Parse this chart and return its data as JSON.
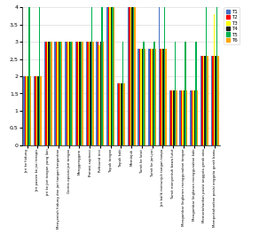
{
  "categories": [
    "Jari ke hidung",
    "Jari pasien ke jari terapis",
    "jari ke jari tangan yang lain",
    "Menyentuh hidung dan jari tangan bergantian",
    "Germs oposisi jari tangan",
    "Menggenggam",
    "Pronasi-supinasi",
    "Rebound test",
    "Tepuk tangan",
    "Tepuk kaki",
    "Meminjuk",
    "Tumit ke lutut",
    "Tumit ke jari-jari",
    "Jari balik menunjuk tangan tanpa",
    "Tumit menyentuh bawa lutut",
    "Mengambar lingkaran menggunakan tangan",
    "Mengambar lingkaran menggunakan kaki",
    "Memertahankan posisi anggota gerak atas",
    "Mempertahankan posisi anggota gerak bawu"
  ],
  "series": {
    "T1": [
      2.0,
      2.0,
      3.0,
      3.0,
      3.0,
      3.0,
      3.0,
      3.0,
      4.0,
      1.8,
      4.0,
      2.8,
      2.8,
      4.0,
      1.6,
      1.6,
      1.6,
      2.6,
      2.6
    ],
    "T2": [
      2.0,
      2.0,
      3.0,
      3.0,
      3.0,
      3.0,
      3.0,
      3.0,
      4.0,
      1.8,
      4.0,
      2.8,
      2.8,
      2.8,
      1.6,
      1.6,
      1.6,
      2.6,
      2.6
    ],
    "T3": [
      2.0,
      2.0,
      3.0,
      3.0,
      3.0,
      3.0,
      3.0,
      2.9,
      4.0,
      1.8,
      4.0,
      2.8,
      2.8,
      2.8,
      1.6,
      1.6,
      1.6,
      2.6,
      3.8
    ],
    "T4": [
      2.0,
      2.0,
      3.0,
      3.0,
      3.0,
      3.0,
      3.0,
      3.0,
      4.0,
      1.8,
      4.0,
      2.8,
      2.8,
      2.8,
      1.6,
      1.6,
      1.6,
      2.6,
      2.6
    ],
    "T5": [
      4.0,
      4.0,
      3.0,
      3.0,
      3.0,
      3.0,
      4.0,
      4.0,
      4.0,
      3.0,
      4.0,
      3.0,
      3.0,
      4.0,
      3.0,
      3.0,
      3.0,
      4.0,
      4.0
    ],
    "T6": [
      2.0,
      2.0,
      3.0,
      3.0,
      3.0,
      3.0,
      3.0,
      3.0,
      4.0,
      1.8,
      4.0,
      2.8,
      2.8,
      2.8,
      1.6,
      1.6,
      1.6,
      2.6,
      2.6
    ]
  },
  "colors": {
    "T1": "#4472C4",
    "T2": "#FF0000",
    "T3": "#FFFF00",
    "T4": "#1C1C1C",
    "T5": "#00B050",
    "T6": "#FFA500"
  },
  "ylim": [
    0,
    4
  ],
  "yticks": [
    0,
    0.5,
    1,
    1.5,
    2,
    2.5,
    3,
    3.5,
    4
  ],
  "ytick_labels": [
    "0",
    "0,5",
    "1",
    "1,5",
    "2",
    "2,5",
    "3",
    "3,5",
    "4"
  ],
  "legend_labels": [
    "T1",
    "T2",
    "T3",
    "T4",
    "T5",
    "T6"
  ],
  "figsize": [
    3.1,
    2.82
  ],
  "dpi": 100
}
